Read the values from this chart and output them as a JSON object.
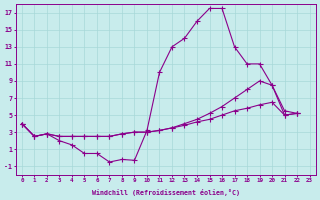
{
  "background_color": "#c8ecec",
  "grid_color": "#a8d8d8",
  "line_color": "#8b008b",
  "marker_color": "#8b008b",
  "xlabel": "Windchill (Refroidissement éolien,°C)",
  "xlim": [
    -0.5,
    23.5
  ],
  "ylim": [
    -2,
    18
  ],
  "yticks": [
    -1,
    1,
    3,
    5,
    7,
    9,
    11,
    13,
    15,
    17
  ],
  "xticks": [
    0,
    1,
    2,
    3,
    4,
    5,
    6,
    7,
    8,
    9,
    10,
    11,
    12,
    13,
    14,
    15,
    16,
    17,
    18,
    19,
    20,
    21,
    22,
    23
  ],
  "line1_x": [
    0,
    1,
    2,
    3,
    4,
    5,
    6,
    7,
    8,
    9,
    10,
    11,
    12,
    13,
    14,
    15,
    16,
    17,
    18,
    19,
    20,
    21,
    22
  ],
  "line1_y": [
    4,
    2.5,
    2.8,
    2.0,
    1.5,
    0.5,
    0.5,
    -0.5,
    -0.2,
    -0.3,
    3.2,
    10.0,
    13.0,
    14.0,
    16.0,
    17.5,
    17.5,
    13.0,
    11.0,
    11.0,
    8.5,
    5.0,
    5.2
  ],
  "line2_x": [
    0,
    1,
    2,
    3,
    4,
    5,
    6,
    7,
    8,
    9,
    10,
    11,
    12,
    13,
    14,
    15,
    16,
    17,
    18,
    19,
    20,
    21,
    22
  ],
  "line2_y": [
    4,
    2.5,
    2.8,
    2.5,
    2.5,
    2.5,
    2.5,
    2.5,
    2.8,
    3.0,
    3.0,
    3.2,
    3.5,
    4.0,
    4.5,
    5.2,
    6.0,
    7.0,
    8.0,
    9.0,
    8.5,
    5.5,
    5.2
  ],
  "line3_x": [
    0,
    1,
    2,
    3,
    4,
    5,
    6,
    7,
    8,
    9,
    10,
    11,
    12,
    13,
    14,
    15,
    16,
    17,
    18,
    19,
    20,
    21,
    22
  ],
  "line3_y": [
    4,
    2.5,
    2.8,
    2.5,
    2.5,
    2.5,
    2.5,
    2.5,
    2.8,
    3.0,
    3.0,
    3.2,
    3.5,
    3.8,
    4.2,
    4.5,
    5.0,
    5.5,
    5.8,
    6.2,
    6.5,
    5.0,
    5.2
  ]
}
